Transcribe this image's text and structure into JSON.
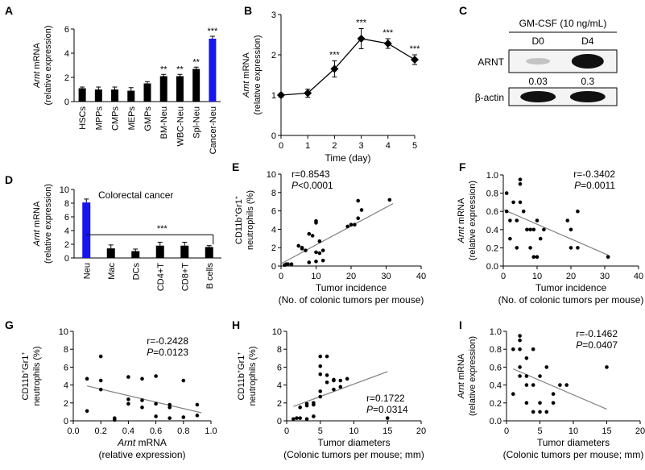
{
  "panels": [
    {
      "letter": "A",
      "type": "bar",
      "categories": [
        "HSCs",
        "MPPs",
        "CMPs",
        "MEPs",
        "GMPs",
        "BM-Neu",
        "WBC-Neu",
        "Spl-Neu",
        "Cancer-Neu"
      ],
      "values": [
        1.1,
        1.0,
        1.0,
        0.9,
        1.5,
        2.1,
        2.1,
        2.7,
        5.2
      ],
      "errors": [
        0.1,
        0.2,
        0.2,
        0.25,
        0.15,
        0.15,
        0.15,
        0.15,
        0.2
      ],
      "highlight": [
        8
      ],
      "sig": [
        "",
        "",
        "",
        "",
        "",
        "**",
        "**",
        "**",
        "***"
      ],
      "ylabel_italic": "Arnt",
      "ylabel_rest": " mRNA",
      "ylabel2": "(relative expression)",
      "ylim": [
        0,
        6
      ],
      "yticks": [
        "0",
        "2",
        "4",
        "6"
      ]
    },
    {
      "letter": "B",
      "type": "line",
      "x": [
        0,
        1,
        2,
        3,
        4,
        5
      ],
      "y": [
        1.0,
        1.05,
        1.65,
        2.4,
        2.28,
        1.88
      ],
      "errors": [
        0.05,
        0.1,
        0.2,
        0.25,
        0.12,
        0.12
      ],
      "sig": [
        "",
        "",
        "***",
        "***",
        "***",
        "***"
      ],
      "ylabel_italic": "Arnt",
      "ylabel_rest": " mRNA",
      "ylabel2": "(relative expression)",
      "xlabel": "Time (day)",
      "xlim": [
        0,
        5
      ],
      "ylim": [
        0,
        3
      ],
      "xticks": [
        "0",
        "1",
        "2",
        "3",
        "4",
        "5"
      ],
      "yticks": [
        "0",
        "1",
        "2",
        "3"
      ]
    },
    {
      "letter": "C",
      "type": "blot",
      "treatment": "GM-CSF (10 ng/mL)",
      "lanes": [
        "D0",
        "D4"
      ],
      "rows": [
        "ARNT",
        "β-actin"
      ],
      "quant": [
        "0.03",
        "0.3"
      ]
    },
    {
      "letter": "D",
      "type": "bar",
      "title": "Colorectal cancer",
      "categories": [
        "Neu",
        "Mac",
        "DCs",
        "CD4+T",
        "CD8+T",
        "B cells"
      ],
      "values": [
        8.1,
        1.4,
        1.0,
        1.8,
        1.8,
        1.6
      ],
      "errors": [
        0.5,
        0.5,
        0.3,
        0.5,
        0.5,
        0.2
      ],
      "highlight": [
        0
      ],
      "sig_text": "***",
      "ylabel_italic": "Arnt",
      "ylabel_rest": " mRNA",
      "ylabel2": "(relative expression)",
      "ylim": [
        0,
        10
      ],
      "yticks": [
        "0",
        "2",
        "4",
        "6",
        "8",
        "10"
      ]
    },
    {
      "letter": "E",
      "type": "scatter",
      "r": "r=0.8543",
      "p_sym": "P",
      "p_val": "<0.0001",
      "x": [
        1,
        1.5,
        2,
        3,
        5,
        6,
        6,
        7,
        8,
        8,
        9,
        10,
        10,
        10,
        10,
        11,
        11,
        12,
        12,
        19,
        20,
        21,
        22,
        22,
        23,
        31
      ],
      "y": [
        0.1,
        0.2,
        0.2,
        0.2,
        2.2,
        2.0,
        1.9,
        1.7,
        0.4,
        3.5,
        3.3,
        0.5,
        1.5,
        4.9,
        4.7,
        2.7,
        1.4,
        1.7,
        0.6,
        4.3,
        4.5,
        4.5,
        7.1,
        5.2,
        6.1,
        7.2
      ],
      "fit": [
        [
          0,
          0.25
        ],
        [
          32,
          6.8
        ]
      ],
      "ylabel_sup1": "CD11b",
      "ylabel_sup2": "Gr1",
      "ylabel2": "neutrophils (%)",
      "xlabel": "Tumor incidence",
      "xlabel2": "(No. of colonic tumors per mouse)",
      "xlim": [
        0,
        40
      ],
      "ylim": [
        0,
        10
      ],
      "xticks": [
        "0",
        "10",
        "20",
        "30",
        "40"
      ],
      "yticks": [
        "0",
        "2",
        "4",
        "6",
        "8",
        "10"
      ]
    },
    {
      "letter": "F",
      "type": "scatter",
      "r": "r=-0.3402",
      "p_sym": "P",
      "p_val": "=0.0011",
      "x": [
        1,
        1,
        2,
        2,
        3,
        4,
        4,
        5,
        5,
        5,
        6,
        7,
        8,
        8,
        9,
        9,
        10,
        10,
        11,
        12,
        19,
        20,
        22,
        20,
        22,
        31
      ],
      "y": [
        0.8,
        0.6,
        0.5,
        0.3,
        0.7,
        0.5,
        0.2,
        0.95,
        0.9,
        0.7,
        0.6,
        0.4,
        0.4,
        0.2,
        0.4,
        0.1,
        0.5,
        0.1,
        0.3,
        0.4,
        0.5,
        0.4,
        0.6,
        0.2,
        0.2,
        0.1
      ],
      "fit": [
        [
          0,
          0.62
        ],
        [
          31,
          0.12
        ]
      ],
      "ylabel_italic": "Arnt",
      "ylabel_rest": " mRNA",
      "ylabel2": "(relative expression)",
      "xlabel": "Tumor incidence",
      "xlabel2": "(No. of colonic tumors per mouse)",
      "xlim": [
        0,
        40
      ],
      "ylim": [
        0,
        1.0
      ],
      "xticks": [
        "0",
        "10",
        "20",
        "30",
        "40"
      ],
      "yticks": [
        "0.0",
        "0.2",
        "0.4",
        "0.6",
        "0.8",
        "1.0"
      ]
    },
    {
      "letter": "G",
      "type": "scatter",
      "r": "r=-0.2428",
      "p_sym": "P",
      "p_val": "=0.0123",
      "x": [
        0.1,
        0.1,
        0.2,
        0.2,
        0.2,
        0.3,
        0.3,
        0.4,
        0.4,
        0.4,
        0.5,
        0.5,
        0.5,
        0.6,
        0.6,
        0.6,
        0.7,
        0.7,
        0.7,
        0.8,
        0.8,
        0.9,
        0.9
      ],
      "y": [
        4.7,
        1.1,
        7.2,
        4.5,
        3.5,
        0.3,
        0.1,
        4.9,
        2.4,
        1.9,
        2.3,
        1.5,
        4.7,
        1.9,
        0.5,
        5.0,
        1.8,
        0.3,
        1.5,
        4.5,
        0.4,
        0.6,
        1.8
      ],
      "fit": [
        [
          0.1,
          3.9
        ],
        [
          0.93,
          0.9
        ]
      ],
      "ylabel_sup1": "CD11b",
      "ylabel_sup2": "Gr1",
      "ylabel2": "neutrophils (%)",
      "xlabel_italic": "Arnt",
      "xlabel_rest": " mRNA",
      "xlabel2": "(relative expression)",
      "xlim": [
        0,
        1.0
      ],
      "ylim": [
        0,
        10
      ],
      "xticks": [
        "0.0",
        "0.2",
        "0.4",
        "0.6",
        "0.8",
        "1.0"
      ],
      "yticks": [
        "0",
        "2",
        "4",
        "6",
        "8",
        "10"
      ]
    },
    {
      "letter": "H",
      "type": "scatter",
      "r": "r=0.1722",
      "p_sym": "P",
      "p_val": "=0.0314",
      "x": [
        1,
        1.5,
        2,
        2,
        3,
        3,
        3,
        4,
        4,
        4,
        5,
        5,
        5,
        5,
        5,
        6,
        6,
        6,
        7,
        7,
        7,
        8,
        8,
        9,
        15
      ],
      "y": [
        0.2,
        0.3,
        0.3,
        1.5,
        1.7,
        1.9,
        0.2,
        2.0,
        1.8,
        0.5,
        3.3,
        7.2,
        6.1,
        5.2,
        2.7,
        5.1,
        7.2,
        4.3,
        4.5,
        4.6,
        3.5,
        4.5,
        3.8,
        4.7,
        0.3
      ],
      "fit": [
        [
          1,
          1.6
        ],
        [
          15,
          5.5
        ]
      ],
      "ylabel_sup1": "CD11b",
      "ylabel_sup2": "Gr1",
      "ylabel2": "neutrophils (%)",
      "xlabel": "Tumor diameters",
      "xlabel2": "(Colonic tumors per mouse; mm)",
      "xlim": [
        0,
        20
      ],
      "ylim": [
        0,
        10
      ],
      "xticks": [
        "0",
        "5",
        "10",
        "15",
        "20"
      ],
      "yticks": [
        "0",
        "2",
        "4",
        "6",
        "8",
        "10"
      ]
    },
    {
      "letter": "I",
      "type": "scatter",
      "r": "r=-0.1462",
      "p_sym": "P",
      "p_val": "=0.0407",
      "x": [
        1,
        1,
        2,
        2,
        2,
        2,
        2,
        3,
        3,
        3,
        3,
        4,
        4,
        4,
        5,
        5,
        5,
        6,
        6,
        7,
        7,
        8,
        9,
        15
      ],
      "y": [
        0.8,
        0.3,
        0.95,
        0.9,
        0.8,
        0.6,
        0.5,
        0.7,
        0.5,
        0.4,
        0.2,
        0.8,
        0.4,
        0.1,
        0.5,
        0.2,
        0.1,
        0.6,
        0.1,
        0.3,
        0.2,
        0.4,
        0.4,
        0.6
      ],
      "fit": [
        [
          1,
          0.58
        ],
        [
          15,
          0.13
        ]
      ],
      "ylabel_italic": "Arnt",
      "ylabel_rest": " mRNA",
      "ylabel2": "(relative expression)",
      "xlabel": "Tumor diameters",
      "xlabel2": "(Colonic tumors per mouse; mm)",
      "xlim": [
        0,
        20
      ],
      "ylim": [
        0,
        1.0
      ],
      "xticks": [
        "0",
        "5",
        "10",
        "15",
        "20"
      ],
      "yticks": [
        "0.0",
        "0.2",
        "0.4",
        "0.6",
        "0.8",
        "1.0"
      ]
    }
  ],
  "colors": {
    "bar": "#000000",
    "highlight": "#1515f0",
    "fit_line": "#808080",
    "point": "#000000"
  },
  "chart_data": [
    {
      "panel": "A",
      "type": "bar",
      "categories": [
        "HSCs",
        "MPPs",
        "CMPs",
        "MEPs",
        "GMPs",
        "BM-Neu",
        "WBC-Neu",
        "Spl-Neu",
        "Cancer-Neu"
      ],
      "values": [
        1.1,
        1.0,
        1.0,
        0.9,
        1.5,
        2.1,
        2.1,
        2.7,
        5.2
      ],
      "ylabel": "Arnt mRNA (relative expression)",
      "ylim": [
        0,
        6
      ]
    },
    {
      "panel": "B",
      "type": "line",
      "x": [
        0,
        1,
        2,
        3,
        4,
        5
      ],
      "y": [
        1.0,
        1.05,
        1.65,
        2.4,
        2.28,
        1.88
      ],
      "xlabel": "Time (day)",
      "ylabel": "Arnt mRNA (relative expression)",
      "ylim": [
        0,
        3
      ]
    },
    {
      "panel": "D",
      "type": "bar",
      "title": "Colorectal cancer",
      "categories": [
        "Neu",
        "Mac",
        "DCs",
        "CD4+T",
        "CD8+T",
        "B cells"
      ],
      "values": [
        8.1,
        1.4,
        1.0,
        1.8,
        1.8,
        1.6
      ],
      "ylabel": "Arnt mRNA (relative expression)",
      "ylim": [
        0,
        10
      ]
    },
    {
      "panel": "E",
      "type": "scatter",
      "xlabel": "Tumor incidence (No. of colonic tumors per mouse)",
      "ylabel": "CD11b+Gr1+ neutrophils (%)",
      "annotation": "r=0.8543, P<0.0001"
    },
    {
      "panel": "F",
      "type": "scatter",
      "xlabel": "Tumor incidence (No. of colonic tumors per mouse)",
      "ylabel": "Arnt mRNA (relative expression)",
      "annotation": "r=-0.3402, P=0.0011"
    },
    {
      "panel": "G",
      "type": "scatter",
      "xlabel": "Arnt mRNA (relative expression)",
      "ylabel": "CD11b+Gr1+ neutrophils (%)",
      "annotation": "r=-0.2428, P=0.0123"
    },
    {
      "panel": "H",
      "type": "scatter",
      "xlabel": "Tumor diameters (Colonic tumors per mouse; mm)",
      "ylabel": "CD11b+Gr1+ neutrophils (%)",
      "annotation": "r=0.1722, P=0.0314"
    },
    {
      "panel": "I",
      "type": "scatter",
      "xlabel": "Tumor diameters (Colonic tumors per mouse; mm)",
      "ylabel": "Arnt mRNA (relative expression)",
      "annotation": "r=-0.1462, P=0.0407"
    }
  ]
}
